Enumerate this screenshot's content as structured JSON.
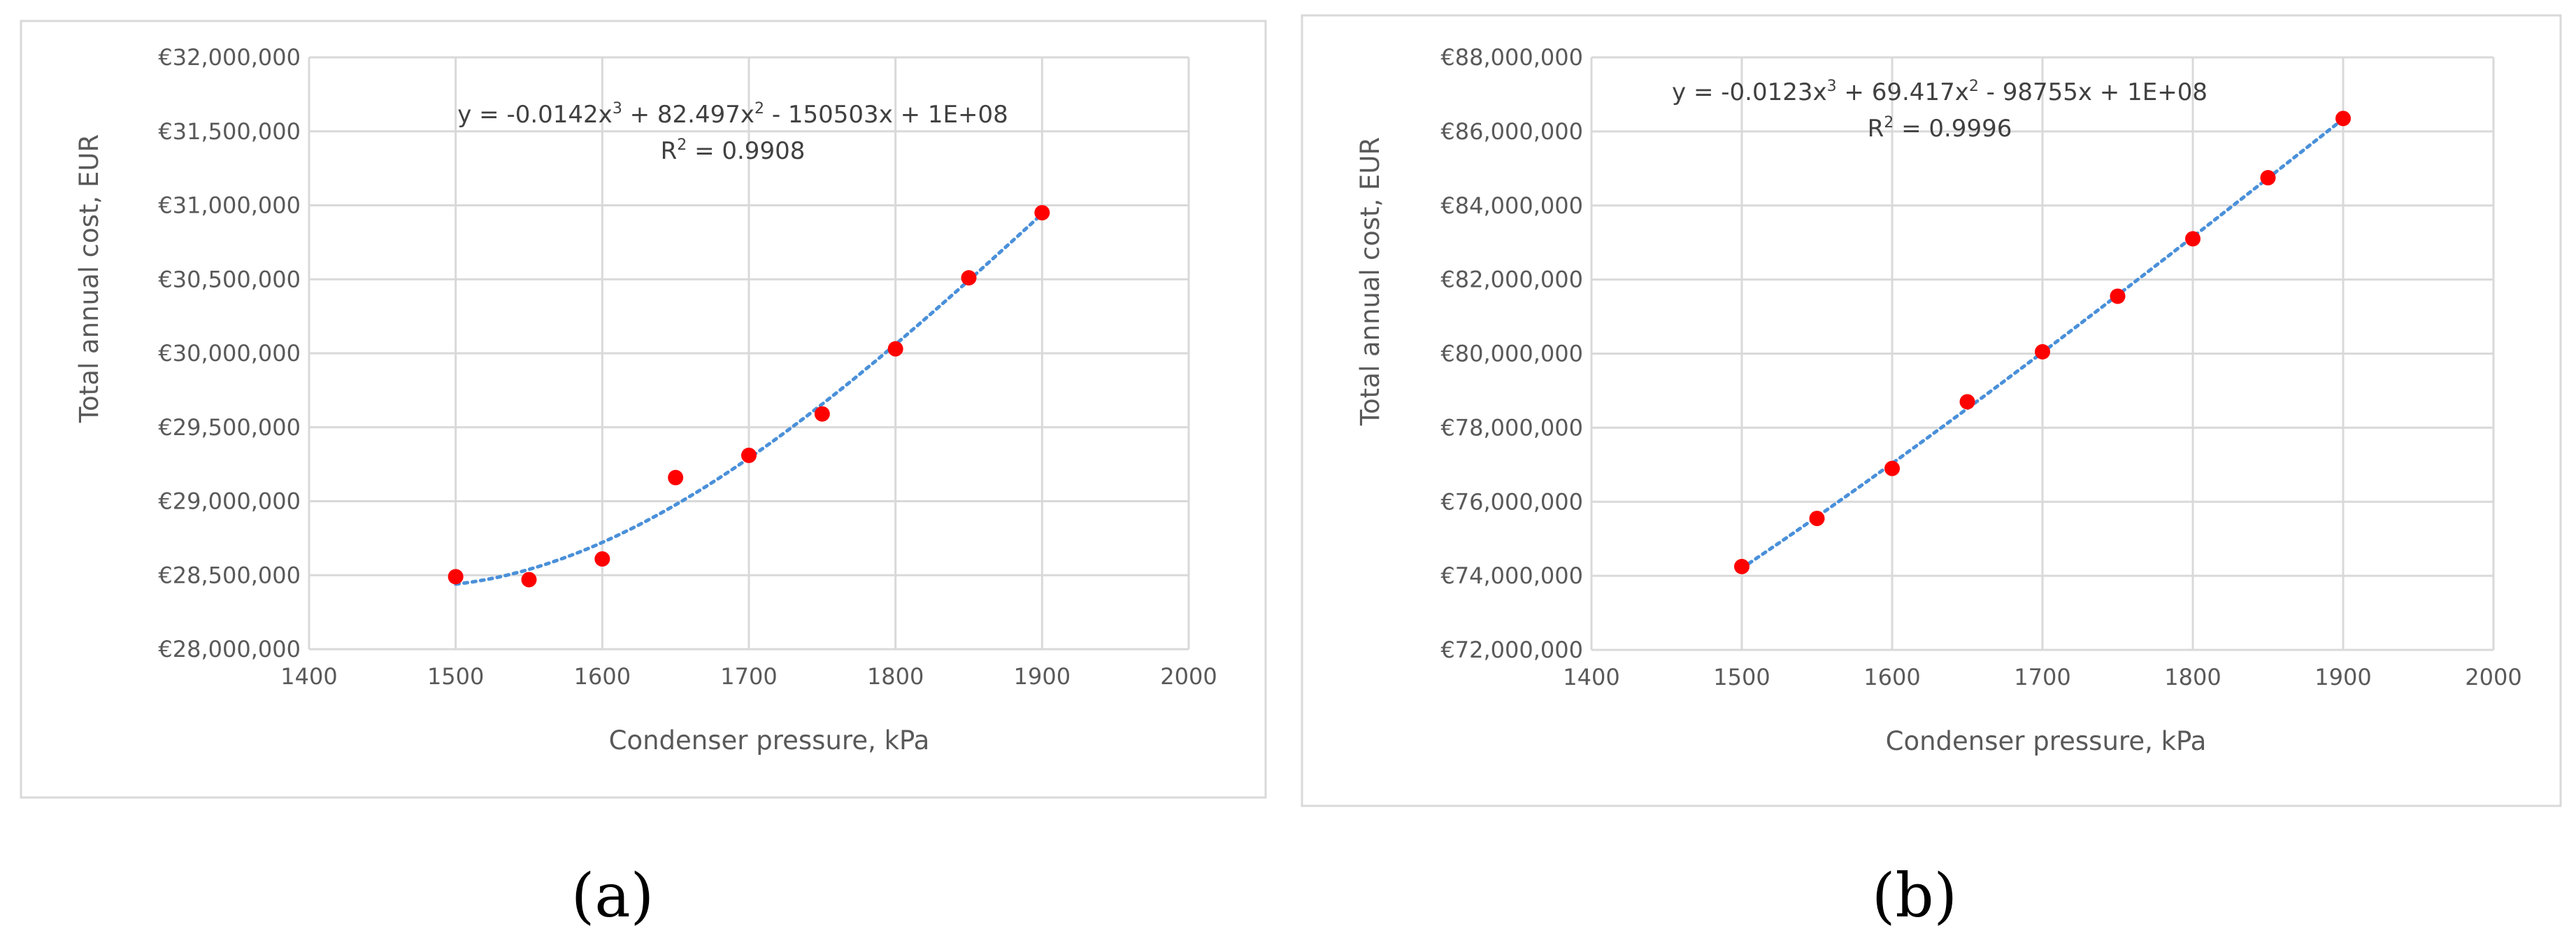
{
  "chart_data": [
    {
      "type": "scatter",
      "panel_label": "(a)",
      "xlabel": "Condenser pressure, kPa",
      "ylabel": "Total annual cost, EUR",
      "xlim": [
        1400,
        2000
      ],
      "ylim": [
        28000000,
        32000000
      ],
      "x_ticks": [
        "1400",
        "1500",
        "1600",
        "1700",
        "1800",
        "1900",
        "2000"
      ],
      "y_ticks": [
        "€28,000,000",
        "€28,500,000",
        "€29,000,000",
        "€29,500,000",
        "€30,000,000",
        "€30,500,000",
        "€31,000,000",
        "€31,500,000",
        "€32,000,000"
      ],
      "x_tick_values": [
        1400,
        1500,
        1600,
        1700,
        1800,
        1900,
        2000
      ],
      "y_tick_values": [
        28000000,
        28500000,
        29000000,
        29500000,
        30000000,
        30500000,
        31000000,
        31500000,
        32000000
      ],
      "x": [
        1500,
        1550,
        1600,
        1650,
        1700,
        1750,
        1800,
        1850,
        1900
      ],
      "y": [
        28490000,
        28470000,
        28610000,
        29160000,
        29310000,
        29590000,
        30030000,
        30510000,
        30950000
      ],
      "trendline": {
        "type": "polynomial",
        "order": 3,
        "equation_parts": [
          "y = -0.0142x",
          "3",
          " + 82.497x",
          "2",
          " - 150503x + 1E+08"
        ],
        "r2_parts": [
          "R",
          "2",
          " = 0.9908"
        ]
      },
      "grid": "horizontal-and-vertical",
      "legend": "none",
      "colors": {
        "points": "#ff0000",
        "trendline": "#4a90d9",
        "grid": "#d9d9d9"
      }
    },
    {
      "type": "scatter",
      "panel_label": "(b)",
      "xlabel": "Condenser pressure, kPa",
      "ylabel": "Total annual cost, EUR",
      "xlim": [
        1400,
        2000
      ],
      "ylim": [
        72000000,
        88000000
      ],
      "x_ticks": [
        "1400",
        "1500",
        "1600",
        "1700",
        "1800",
        "1900",
        "2000"
      ],
      "y_ticks": [
        "€72,000,000",
        "€74,000,000",
        "€76,000,000",
        "€78,000,000",
        "€80,000,000",
        "€82,000,000",
        "€84,000,000",
        "€86,000,000",
        "€88,000,000"
      ],
      "x_tick_values": [
        1400,
        1500,
        1600,
        1700,
        1800,
        1900,
        2000
      ],
      "y_tick_values": [
        72000000,
        74000000,
        76000000,
        78000000,
        80000000,
        82000000,
        84000000,
        86000000,
        88000000
      ],
      "x": [
        1500,
        1550,
        1600,
        1650,
        1700,
        1750,
        1800,
        1850,
        1900
      ],
      "y": [
        74250000,
        75550000,
        76900000,
        78700000,
        80050000,
        81550000,
        83100000,
        84750000,
        86350000
      ],
      "trendline": {
        "type": "polynomial",
        "order": 3,
        "equation_parts": [
          "y = -0.0123x",
          "3",
          " + 69.417x",
          "2",
          " - 98755x + 1E+08"
        ],
        "r2_parts": [
          "R",
          "2",
          " = 0.9996"
        ]
      },
      "grid": "horizontal-and-vertical",
      "legend": "none",
      "colors": {
        "points": "#ff0000",
        "trendline": "#4a90d9",
        "grid": "#d9d9d9"
      }
    }
  ]
}
